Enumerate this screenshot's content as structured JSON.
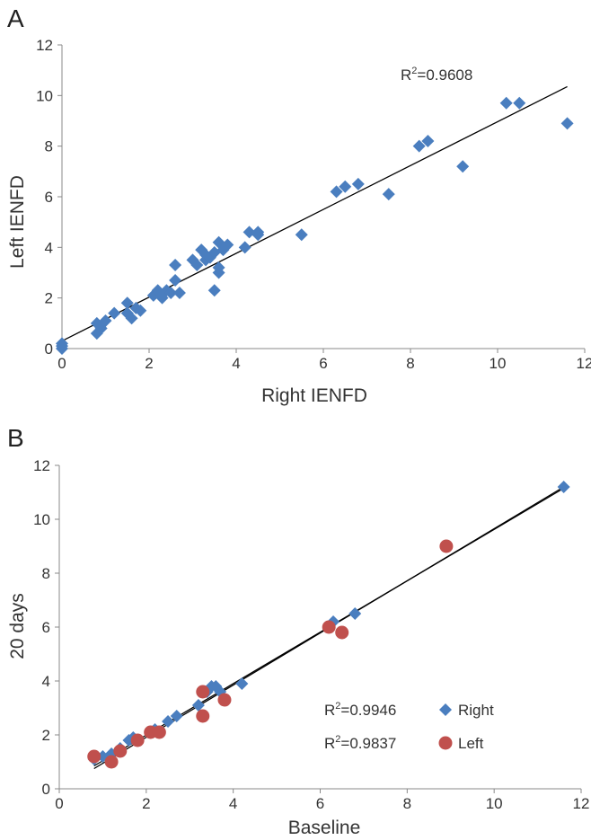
{
  "chart_data": [
    {
      "panel_label": "A",
      "type": "scatter",
      "xlabel": "Right IENFD",
      "ylabel": "Left IENFD",
      "xlim": [
        0,
        12
      ],
      "ylim": [
        0,
        12
      ],
      "xticks": [
        "0",
        "2",
        "4",
        "6",
        "8",
        "10",
        "12"
      ],
      "yticks": [
        "0",
        "2",
        "4",
        "6",
        "8",
        "10",
        "12"
      ],
      "grid": false,
      "colors": {
        "points": "#4a7ebf",
        "trendline": "#000000"
      },
      "marker": "diamond",
      "annotation": {
        "r2_prefix": "R",
        "r2_sup": "2",
        "r2_value": "=0.9608"
      },
      "trendline": {
        "x": [
          0,
          11.6
        ],
        "y": [
          0.3,
          10.35
        ]
      },
      "series": [
        {
          "points": [
            [
              0,
              0
            ],
            [
              0,
              0.1
            ],
            [
              0,
              0.2
            ],
            [
              0.8,
              1.0
            ],
            [
              0.8,
              0.6
            ],
            [
              0.9,
              0.8
            ],
            [
              1.0,
              1.1
            ],
            [
              1.2,
              1.4
            ],
            [
              1.5,
              1.8
            ],
            [
              1.5,
              1.4
            ],
            [
              1.6,
              1.2
            ],
            [
              1.7,
              1.6
            ],
            [
              1.8,
              1.5
            ],
            [
              2.1,
              2.1
            ],
            [
              2.2,
              2.3
            ],
            [
              2.3,
              2.0
            ],
            [
              2.4,
              2.3
            ],
            [
              2.5,
              2.2
            ],
            [
              2.6,
              2.7
            ],
            [
              2.6,
              3.3
            ],
            [
              2.7,
              2.2
            ],
            [
              3.0,
              3.5
            ],
            [
              3.1,
              3.3
            ],
            [
              3.2,
              3.9
            ],
            [
              3.3,
              3.5
            ],
            [
              3.3,
              3.7
            ],
            [
              3.4,
              3.6
            ],
            [
              3.5,
              2.3
            ],
            [
              3.5,
              3.8
            ],
            [
              3.6,
              3.0
            ],
            [
              3.6,
              3.2
            ],
            [
              3.6,
              4.2
            ],
            [
              3.7,
              3.9
            ],
            [
              3.8,
              4.1
            ],
            [
              4.2,
              4.0
            ],
            [
              4.3,
              4.6
            ],
            [
              4.5,
              4.5
            ],
            [
              4.5,
              4.6
            ],
            [
              5.5,
              4.5
            ],
            [
              6.3,
              6.2
            ],
            [
              6.5,
              6.4
            ],
            [
              6.8,
              6.5
            ],
            [
              7.5,
              6.1
            ],
            [
              8.2,
              8.0
            ],
            [
              8.4,
              8.2
            ],
            [
              9.2,
              7.2
            ],
            [
              10.2,
              9.7
            ],
            [
              10.5,
              9.7
            ],
            [
              11.6,
              8.9
            ]
          ]
        }
      ]
    },
    {
      "panel_label": "B",
      "type": "scatter",
      "xlabel": "Baseline",
      "ylabel": "20 days",
      "xlim": [
        0,
        12
      ],
      "ylim": [
        0,
        12
      ],
      "xticks": [
        "0",
        "2",
        "4",
        "6",
        "8",
        "10",
        "12"
      ],
      "yticks": [
        "0",
        "2",
        "4",
        "6",
        "8",
        "10",
        "12"
      ],
      "grid": false,
      "legend_placement": "bottom-right",
      "series": [
        {
          "name": "Right",
          "r2_prefix": "R",
          "r2_sup": "2",
          "r2_value": "=0.9946",
          "marker": "diamond",
          "color": "#4a7ebf",
          "trendline": {
            "x": [
              0.8,
              11.6
            ],
            "y": [
              0.75,
              11.2
            ]
          },
          "points": [
            [
              0.8,
              1.1
            ],
            [
              1.0,
              1.2
            ],
            [
              1.2,
              1.3
            ],
            [
              1.4,
              1.5
            ],
            [
              1.6,
              1.8
            ],
            [
              1.7,
              1.9
            ],
            [
              2.2,
              2.2
            ],
            [
              2.5,
              2.5
            ],
            [
              2.7,
              2.7
            ],
            [
              3.2,
              3.1
            ],
            [
              3.4,
              3.6
            ],
            [
              3.5,
              3.8
            ],
            [
              3.6,
              3.8
            ],
            [
              3.7,
              3.6
            ],
            [
              4.2,
              3.9
            ],
            [
              6.3,
              6.2
            ],
            [
              6.8,
              6.5
            ],
            [
              11.6,
              11.2
            ]
          ]
        },
        {
          "name": "Left",
          "r2_prefix": "R",
          "r2_sup": "2",
          "r2_value": "=0.9837",
          "marker": "circle",
          "color": "#c0504d",
          "trendline": {
            "x": [
              0.8,
              11.6
            ],
            "y": [
              0.85,
              11.15
            ]
          },
          "points": [
            [
              0.8,
              1.2
            ],
            [
              1.2,
              1.0
            ],
            [
              1.4,
              1.4
            ],
            [
              1.8,
              1.8
            ],
            [
              2.1,
              2.1
            ],
            [
              2.3,
              2.1
            ],
            [
              3.3,
              3.6
            ],
            [
              3.3,
              2.7
            ],
            [
              3.8,
              3.3
            ],
            [
              6.2,
              6.0
            ],
            [
              6.5,
              5.8
            ],
            [
              8.9,
              9.0
            ]
          ]
        }
      ]
    }
  ]
}
